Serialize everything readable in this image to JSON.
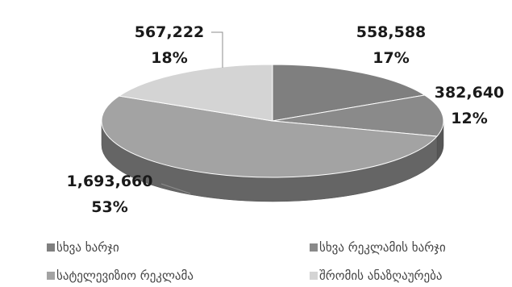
{
  "header": {
    "title_fragment": ""
  },
  "colors": {
    "series_a": "#7f7f7f",
    "series_b": "#8a8a8a",
    "series_c": "#a3a3a3",
    "series_d": "#d4d4d4"
  },
  "chart_data": {
    "type": "pie",
    "title": "",
    "slices": [
      {
        "name": "",
        "value": 558588,
        "value_label": "558,588",
        "pct_label": "17%",
        "color": "#7f7f7f"
      },
      {
        "name": "",
        "value": 382640,
        "value_label": "382,640",
        "pct_label": "12%",
        "color": "#8a8a8a"
      },
      {
        "name": "",
        "value": 1693660,
        "value_label": "1,693,660",
        "pct_label": "53%",
        "color": "#a3a3a3"
      },
      {
        "name": "",
        "value": 567222,
        "value_label": "567,222",
        "pct_label": "18%",
        "color": "#d4d4d4"
      }
    ],
    "legend": {
      "placement": "bottom",
      "entries": [
        {
          "label": "სხვა ხარჯი",
          "color": "#7f7f7f"
        },
        {
          "label": "სხვა რეკლამის ხარჯი",
          "color": "#8a8a8a"
        },
        {
          "label": "სატელევიზიო რეკლამა",
          "color": "#a3a3a3"
        },
        {
          "label": "შრომის ანაზღაურება",
          "color": "#d4d4d4"
        }
      ]
    }
  }
}
